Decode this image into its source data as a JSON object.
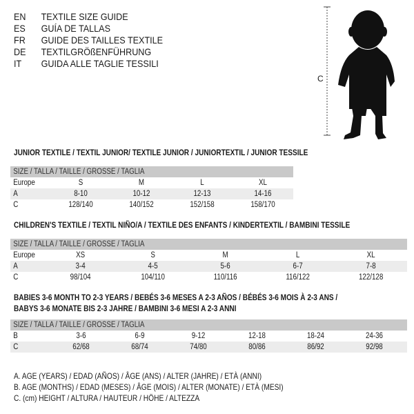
{
  "header": [
    {
      "code": "EN",
      "text": "TEXTILE SIZE GUIDE"
    },
    {
      "code": "ES",
      "text": "GUÍA DE TALLAS"
    },
    {
      "code": "FR",
      "text": "GUIDE DES TAILLES TEXTILE"
    },
    {
      "code": "DE",
      "text": "TEXTILGRÖßENFÜHRUNG"
    },
    {
      "code": "IT",
      "text": "GUIDA ALLE TAGLIE TESSILI"
    }
  ],
  "figure": {
    "icon": "child-silhouette-icon",
    "height_label": "C"
  },
  "size_header": "SIZE / TALLA / TAILLE / GRÖSSE / TAGLIA",
  "junior": {
    "title": "JUNIOR TEXTILE / TEXTIL JUNIOR/ TEXTILE JUNIOR / JUNIORTEXTIL / JUNIOR TESSILE",
    "rows": [
      {
        "label": "Europe",
        "values": [
          "S",
          "M",
          "L",
          "XL"
        ]
      },
      {
        "label": "A",
        "values": [
          "8-10",
          "10-12",
          "12-13",
          "14-16"
        ]
      },
      {
        "label": "C",
        "values": [
          "128/140",
          "140/152",
          "152/158",
          "158/170"
        ]
      }
    ]
  },
  "children": {
    "title": "CHILDREN'S TEXTILE / TEXTIL NIÑO/A / TEXTILE DES ENFANTS / KINDERTEXTIL / BAMBINI TESSILE",
    "rows": [
      {
        "label": "Europe",
        "values": [
          "XS",
          "S",
          "M",
          "L",
          "XL"
        ]
      },
      {
        "label": "A",
        "values": [
          "3-4",
          "4-5",
          "5-6",
          "6-7",
          "7-8"
        ]
      },
      {
        "label": "C",
        "values": [
          "98/104",
          "104/110",
          "110/116",
          "116/122",
          "122/128"
        ]
      }
    ]
  },
  "babies": {
    "title_line1": "BABIES 3-6 MONTH TO 2-3 YEARS / BEBÉS 3-6 MESES A 2-3 AÑOS / BÉBÉS 3-6 MOIS À 2-3 ANS /",
    "title_line2": "BABYS 3-6 MONATE BIS 2-3 JAHRE / BAMBINI 3-6 MESI A 2-3 ANNI",
    "rows": [
      {
        "label": "B",
        "values": [
          "3-6",
          "6-9",
          "9-12",
          "12-18",
          "18-24",
          "24-36"
        ]
      },
      {
        "label": "C",
        "values": [
          "62/68",
          "68/74",
          "74/80",
          "80/86",
          "86/92",
          "92/98"
        ]
      }
    ]
  },
  "legend": [
    "A. AGE (YEARS) / EDAD (AÑOS) / ÂGE (ANS) / ALTER (JAHRE) / ETÀ (ANNI)",
    "B. AGE (MONTHS) / EDAD (MESES) / ÂGE (MOIS) / ALTER (MONATE) / ETÀ (MESI)",
    "C. (cm) HEIGHT / ALTURA / HAUTEUR / HÖHE / ALTEZZA"
  ],
  "colors": {
    "header_bar": "#c9c9c9",
    "stripe": "#ececec",
    "text": "#1a1a1a"
  }
}
